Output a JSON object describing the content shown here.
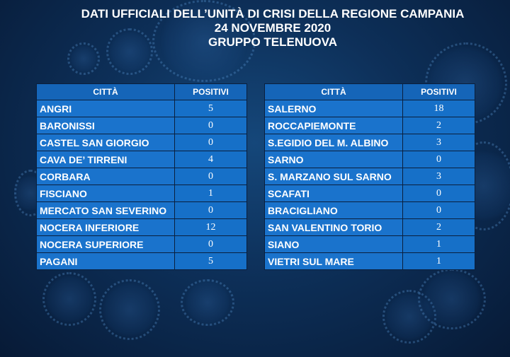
{
  "header": {
    "line1": "DATI UFFICIALI DELL’UNITÀ DI CRISI DELLA REGIONE CAMPANIA",
    "line2": "24 NOVEMBRE 2020",
    "line3": "GRUPPO TELENUOVA"
  },
  "columns": {
    "city": "CITTÀ",
    "positives": "POSITIVI"
  },
  "left_table": [
    {
      "city": "ANGRI",
      "positives": "5"
    },
    {
      "city": "BARONISSI",
      "positives": "0"
    },
    {
      "city": "CASTEL SAN GIORGIO",
      "positives": "0"
    },
    {
      "city": "CAVA DE’ TIRRENI",
      "positives": "4"
    },
    {
      "city": "CORBARA",
      "positives": "0"
    },
    {
      "city": "FISCIANO",
      "positives": "1"
    },
    {
      "city": "MERCATO SAN SEVERINO",
      "positives": "0"
    },
    {
      "city": "NOCERA INFERIORE",
      "positives": "12"
    },
    {
      "city": "NOCERA SUPERIORE",
      "positives": "0"
    },
    {
      "city": "PAGANI",
      "positives": "5"
    }
  ],
  "right_table": [
    {
      "city": "SALERNO",
      "positives": "18"
    },
    {
      "city": "ROCCAPIEMONTE",
      "positives": "2"
    },
    {
      "city": "S.EGIDIO DEL M. ALBINO",
      "positives": "3"
    },
    {
      "city": "SARNO",
      "positives": "0"
    },
    {
      "city": "S. MARZANO SUL SARNO",
      "positives": "3"
    },
    {
      "city": "SCAFATI",
      "positives": "0"
    },
    {
      "city": "BRACIGLIANO",
      "positives": "0"
    },
    {
      "city": "SAN VALENTINO TORIO",
      "positives": "2"
    },
    {
      "city": "SIANO",
      "positives": "1"
    },
    {
      "city": "VIETRI SUL MARE",
      "positives": "1"
    }
  ],
  "colors": {
    "background": "#0d2f58",
    "cell": "#1a73cc",
    "header_cell": "#1565b8"
  }
}
